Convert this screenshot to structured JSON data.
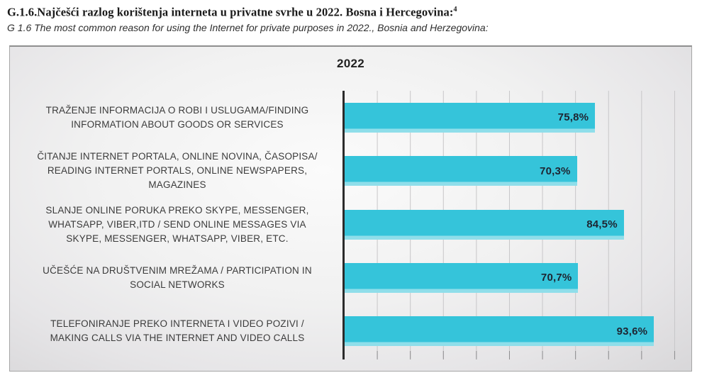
{
  "header": {
    "title": "G.1.6.Najčešći razlog korištenja interneta u privatne svrhe u 2022. Bosna i Hercegovina:",
    "title_footnote": "4",
    "subtitle": "G 1.6 The most common reason for using the Internet for private purposes in 2022., Bosnia and Herzegovina:"
  },
  "chart_data": {
    "type": "bar",
    "orientation": "horizontal",
    "title": "2022",
    "categories": [
      "TRAŽENJE INFORMACIJA O ROBI I USLUGAMA/FINDING\nINFORMATION ABOUT GOODS OR SERVICES",
      "ČITANJE INTERNET PORTALA, ONLINE NOVINA, ČASOPISA/\nREADING INTERNET PORTALS, ONLINE NEWSPAPERS,\nMAGAZINES",
      "SLANJE ONLINE PORUKA PREKO SKYPE, MESSENGER,\nWHATSAPP, VIBER,ITD / SEND ONLINE MESSAGES VIA\nSKYPE, MESSENGER, WHATSAPP, VIBER, ETC.",
      "UČEŠĆE NA DRUŠTVENIM MREŽAMA / PARTICIPATION IN\nSOCIAL NETWORKS",
      "TELEFONIRANJE PREKO INTERNETA I VIDEO POZIVI /\nMAKING CALLS VIA THE INTERNET AND VIDEO CALLS"
    ],
    "values": [
      75.8,
      70.3,
      84.5,
      70.7,
      93.6
    ],
    "value_labels": [
      "75,8%",
      "70,3%",
      "84,5%",
      "70,7%",
      "93,6%"
    ],
    "xlim": [
      0,
      100
    ],
    "gridline_step": 10,
    "grid": true,
    "legend": "none",
    "bar_color": "#35c4da",
    "bar_bottom_highlight": "#8fdeea",
    "value_text_color": "#1e2532",
    "axis_color": "#2b2b2b",
    "gridline_color": "#c7c6c8"
  }
}
